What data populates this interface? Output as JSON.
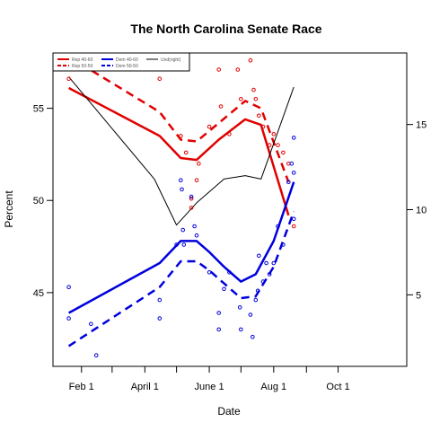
{
  "chart_data": {
    "type": "line",
    "title": "The North Carolina Senate Race",
    "xlabel": "Date",
    "ylabel": "Percent",
    "x_axis": {
      "type": "date",
      "range": [
        "2008-01-05",
        "2008-12-05"
      ],
      "ticks": [
        {
          "date": "2008-02-01",
          "label": "Feb 1"
        },
        {
          "date": "2008-03-01",
          "label": ""
        },
        {
          "date": "2008-04-01",
          "label": "April 1"
        },
        {
          "date": "2008-05-01",
          "label": ""
        },
        {
          "date": "2008-06-01",
          "label": "June 1"
        },
        {
          "date": "2008-07-01",
          "label": ""
        },
        {
          "date": "2008-08-01",
          "label": "Aug 1"
        },
        {
          "date": "2008-09-01",
          "label": ""
        },
        {
          "date": "2008-10-01",
          "label": "Oct 1"
        }
      ]
    },
    "y_left": {
      "range": [
        41,
        58
      ],
      "ticks": [
        45,
        50,
        55
      ]
    },
    "y_right": {
      "range": [
        0.8,
        19.2
      ],
      "ticks": [
        5,
        10,
        15
      ]
    },
    "legend": {
      "position": "top-left",
      "entries": [
        {
          "label": "Rep 40-60",
          "color": "#e00000",
          "dash": "solid"
        },
        {
          "label": "Rep 50-50",
          "color": "#e00000",
          "dash": "dashed"
        },
        {
          "label": "Dem 40-60",
          "color": "#0000dd",
          "dash": "solid"
        },
        {
          "label": "Dem 50-50",
          "color": "#0000dd",
          "dash": "dashed"
        },
        {
          "label": "Und(right)",
          "color": "#000000",
          "dash": "solid"
        }
      ]
    },
    "series": [
      {
        "legend_index": 0,
        "axis": "left",
        "color": "#e00000",
        "dash": "solid",
        "width": 2.5,
        "x": [
          "2008-01-20",
          "2008-04-15",
          "2008-05-05",
          "2008-05-20",
          "2008-06-10",
          "2008-07-05",
          "2008-07-20",
          "2008-08-15"
        ],
        "y": [
          56.1,
          53.5,
          52.3,
          52.2,
          53.3,
          54.4,
          54.1,
          49.2
        ]
      },
      {
        "legend_index": 1,
        "axis": "left",
        "color": "#e00000",
        "dash": "dashed",
        "width": 2.5,
        "x": [
          "2008-01-20",
          "2008-04-15",
          "2008-05-05",
          "2008-05-20",
          "2008-06-10",
          "2008-07-05",
          "2008-07-20",
          "2008-08-15"
        ],
        "y": [
          57.8,
          54.8,
          53.3,
          53.2,
          54.2,
          55.4,
          55.0,
          51.0
        ]
      },
      {
        "legend_index": 2,
        "axis": "left",
        "color": "#0000dd",
        "dash": "solid",
        "width": 2.5,
        "x": [
          "2008-01-20",
          "2008-04-15",
          "2008-05-05",
          "2008-05-20",
          "2008-06-01",
          "2008-06-15",
          "2008-07-01",
          "2008-07-15",
          "2008-08-01",
          "2008-08-20"
        ],
        "y": [
          43.9,
          46.6,
          47.8,
          47.8,
          47.2,
          46.4,
          45.6,
          46.0,
          47.8,
          51.0
        ]
      },
      {
        "legend_index": 3,
        "axis": "left",
        "color": "#0000dd",
        "dash": "dashed",
        "width": 2.5,
        "x": [
          "2008-01-20",
          "2008-04-15",
          "2008-05-05",
          "2008-05-20",
          "2008-06-01",
          "2008-06-15",
          "2008-07-01",
          "2008-07-15",
          "2008-08-01",
          "2008-08-20"
        ],
        "y": [
          42.1,
          45.3,
          46.7,
          46.7,
          46.2,
          45.5,
          44.7,
          44.8,
          46.4,
          49.4
        ]
      },
      {
        "legend_index": 4,
        "axis": "right",
        "color": "#000000",
        "dash": "solid",
        "width": 1,
        "x": [
          "2008-01-20",
          "2008-04-10",
          "2008-05-01",
          "2008-05-20",
          "2008-06-15",
          "2008-07-05",
          "2008-07-20",
          "2008-08-20"
        ],
        "y": [
          17.8,
          11.8,
          9.1,
          10.4,
          11.8,
          12.0,
          11.8,
          17.2
        ]
      }
    ],
    "points": [
      {
        "color": "#e00000",
        "x": "2008-01-20",
        "y": 56.6
      },
      {
        "color": "#e00000",
        "x": "2008-04-15",
        "y": 56.6
      },
      {
        "color": "#e00000",
        "x": "2008-05-05",
        "y": 53.5
      },
      {
        "color": "#e00000",
        "x": "2008-05-10",
        "y": 52.6
      },
      {
        "color": "#e00000",
        "x": "2008-05-15",
        "y": 50.1
      },
      {
        "color": "#e00000",
        "x": "2008-05-15",
        "y": 49.6
      },
      {
        "color": "#e00000",
        "x": "2008-05-20",
        "y": 51.1
      },
      {
        "color": "#e00000",
        "x": "2008-05-22",
        "y": 52.0
      },
      {
        "color": "#e00000",
        "x": "2008-06-01",
        "y": 54.0
      },
      {
        "color": "#e00000",
        "x": "2008-06-10",
        "y": 57.1
      },
      {
        "color": "#e00000",
        "x": "2008-06-12",
        "y": 55.1
      },
      {
        "color": "#e00000",
        "x": "2008-06-20",
        "y": 53.6
      },
      {
        "color": "#e00000",
        "x": "2008-06-28",
        "y": 57.1
      },
      {
        "color": "#e00000",
        "x": "2008-07-01",
        "y": 55.5
      },
      {
        "color": "#e00000",
        "x": "2008-07-10",
        "y": 57.6
      },
      {
        "color": "#e00000",
        "x": "2008-07-13",
        "y": 56.0
      },
      {
        "color": "#e00000",
        "x": "2008-07-15",
        "y": 55.5
      },
      {
        "color": "#e00000",
        "x": "2008-07-18",
        "y": 54.6
      },
      {
        "color": "#e00000",
        "x": "2008-07-22",
        "y": 54.0
      },
      {
        "color": "#e00000",
        "x": "2008-07-28",
        "y": 53.0
      },
      {
        "color": "#e00000",
        "x": "2008-08-01",
        "y": 53.6
      },
      {
        "color": "#e00000",
        "x": "2008-08-05",
        "y": 53.0
      },
      {
        "color": "#e00000",
        "x": "2008-08-10",
        "y": 52.6
      },
      {
        "color": "#e00000",
        "x": "2008-08-15",
        "y": 52.0
      },
      {
        "color": "#e00000",
        "x": "2008-08-20",
        "y": 48.6
      },
      {
        "color": "#0000dd",
        "x": "2008-01-20",
        "y": 45.3
      },
      {
        "color": "#0000dd",
        "x": "2008-01-20",
        "y": 43.6
      },
      {
        "color": "#0000dd",
        "x": "2008-02-10",
        "y": 43.3
      },
      {
        "color": "#0000dd",
        "x": "2008-02-15",
        "y": 41.6
      },
      {
        "color": "#0000dd",
        "x": "2008-04-15",
        "y": 44.6
      },
      {
        "color": "#0000dd",
        "x": "2008-04-15",
        "y": 43.6
      },
      {
        "color": "#0000dd",
        "x": "2008-05-01",
        "y": 47.6
      },
      {
        "color": "#0000dd",
        "x": "2008-05-05",
        "y": 51.1
      },
      {
        "color": "#0000dd",
        "x": "2008-05-06",
        "y": 50.6
      },
      {
        "color": "#0000dd",
        "x": "2008-05-07",
        "y": 48.4
      },
      {
        "color": "#0000dd",
        "x": "2008-05-08",
        "y": 47.6
      },
      {
        "color": "#0000dd",
        "x": "2008-05-15",
        "y": 50.2
      },
      {
        "color": "#0000dd",
        "x": "2008-05-18",
        "y": 48.6
      },
      {
        "color": "#0000dd",
        "x": "2008-05-20",
        "y": 48.1
      },
      {
        "color": "#0000dd",
        "x": "2008-06-01",
        "y": 46.1
      },
      {
        "color": "#0000dd",
        "x": "2008-06-10",
        "y": 43.9
      },
      {
        "color": "#0000dd",
        "x": "2008-06-10",
        "y": 43.0
      },
      {
        "color": "#0000dd",
        "x": "2008-06-15",
        "y": 45.2
      },
      {
        "color": "#0000dd",
        "x": "2008-06-20",
        "y": 46.1
      },
      {
        "color": "#0000dd",
        "x": "2008-06-30",
        "y": 44.2
      },
      {
        "color": "#0000dd",
        "x": "2008-07-01",
        "y": 43.0
      },
      {
        "color": "#0000dd",
        "x": "2008-07-10",
        "y": 43.8
      },
      {
        "color": "#0000dd",
        "x": "2008-07-12",
        "y": 42.6
      },
      {
        "color": "#0000dd",
        "x": "2008-07-15",
        "y": 44.6
      },
      {
        "color": "#0000dd",
        "x": "2008-07-17",
        "y": 45.1
      },
      {
        "color": "#0000dd",
        "x": "2008-07-18",
        "y": 47.0
      },
      {
        "color": "#0000dd",
        "x": "2008-07-22",
        "y": 45.6
      },
      {
        "color": "#0000dd",
        "x": "2008-07-25",
        "y": 46.6
      },
      {
        "color": "#0000dd",
        "x": "2008-07-28",
        "y": 46.0
      },
      {
        "color": "#0000dd",
        "x": "2008-08-01",
        "y": 46.6
      },
      {
        "color": "#0000dd",
        "x": "2008-08-05",
        "y": 48.6
      },
      {
        "color": "#0000dd",
        "x": "2008-08-10",
        "y": 47.6
      },
      {
        "color": "#0000dd",
        "x": "2008-08-15",
        "y": 51.0
      },
      {
        "color": "#0000dd",
        "x": "2008-08-18",
        "y": 52.0
      },
      {
        "color": "#0000dd",
        "x": "2008-08-20",
        "y": 53.4
      },
      {
        "color": "#0000dd",
        "x": "2008-08-20",
        "y": 51.5
      },
      {
        "color": "#0000dd",
        "x": "2008-08-20",
        "y": 49.0
      }
    ]
  }
}
